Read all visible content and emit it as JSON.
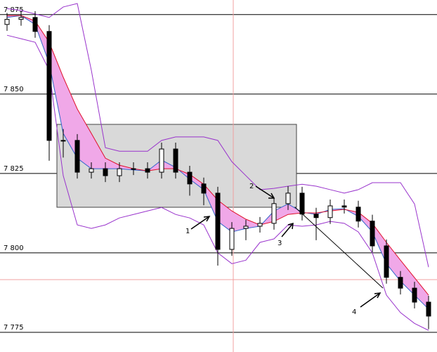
{
  "chart_data": {
    "type": "candlestick",
    "categories": [
      null,
      null,
      null,
      null,
      null,
      null,
      null,
      null,
      null,
      null,
      null,
      null,
      null,
      null,
      null,
      null,
      null,
      null,
      null,
      null,
      null,
      null,
      null,
      null,
      null,
      null,
      null,
      null,
      null,
      null,
      null
    ],
    "open": [
      7.8719,
      7.8735,
      7.8741,
      7.8697,
      7.8354,
      7.8354,
      7.8254,
      7.8265,
      7.8243,
      7.8265,
      7.8265,
      7.8254,
      7.8327,
      7.8254,
      7.8217,
      7.8188,
      7.8011,
      7.8077,
      7.8084,
      7.8093,
      7.8155,
      7.8188,
      7.8122,
      7.8111,
      7.8148,
      7.8144,
      7.81,
      7.8022,
      7.7923,
      7.7889,
      7.7845
    ],
    "high": [
      7.8755,
      7.8761,
      7.8761,
      7.8717,
      7.839,
      7.8374,
      7.8285,
      7.8285,
      7.8285,
      7.8285,
      7.8285,
      7.8347,
      7.8347,
      7.8274,
      7.8237,
      7.8208,
      7.8097,
      7.8104,
      7.8113,
      7.8175,
      7.821,
      7.8208,
      7.8142,
      7.8168,
      7.8168,
      7.8164,
      7.812,
      7.8042,
      7.7943,
      7.7909,
      7.7865
    ],
    "low": [
      7.8699,
      7.8715,
      7.8677,
      7.829,
      7.83,
      7.8234,
      7.8234,
      7.8223,
      7.8223,
      7.8245,
      7.8234,
      7.8234,
      7.8234,
      7.818,
      7.815,
      7.796,
      7.7991,
      7.804,
      7.8064,
      7.8073,
      7.8135,
      7.8102,
      7.804,
      7.8091,
      7.8124,
      7.808,
      7.8002,
      7.7903,
      7.7869,
      7.7825,
      7.776
    ],
    "close": [
      7.8735,
      7.8741,
      7.8697,
      7.8354,
      7.8354,
      7.8254,
      7.8265,
      7.8243,
      7.8265,
      7.8265,
      7.8254,
      7.8327,
      7.8254,
      7.8217,
      7.8188,
      7.8011,
      7.8077,
      7.8084,
      7.8093,
      7.8155,
      7.8188,
      7.8122,
      7.8111,
      7.8148,
      7.8144,
      7.81,
      7.8022,
      7.7923,
      7.7889,
      7.7845,
      7.7801
    ],
    "bands": [
      {
        "color": "#9933cc",
        "values": [
          7.8769,
          7.8763,
          7.8752,
          7.8741,
          7.8774,
          7.8785,
          7.8575,
          7.8331,
          7.832,
          7.832,
          7.832,
          7.8354,
          7.8365,
          7.8365,
          7.8365,
          7.8354,
          7.8287,
          7.8243,
          7.8199,
          7.8203,
          7.821,
          7.8216,
          7.821,
          7.8199,
          7.8188,
          7.8199,
          7.8221,
          7.8221,
          7.8221,
          7.8154,
          7.7955
        ]
      },
      {
        "color": "#9933cc",
        "values": [
          7.8685,
          7.8674,
          7.8663,
          7.8575,
          7.8243,
          7.8088,
          7.8077,
          7.8088,
          7.811,
          7.8121,
          7.8132,
          7.8143,
          7.8121,
          7.811,
          7.8088,
          7.8,
          7.7966,
          7.7977,
          7.8033,
          7.8044,
          7.8088,
          7.8084,
          7.8088,
          7.8099,
          7.8093,
          7.8066,
          7.8,
          7.7867,
          7.7812,
          7.7778,
          7.7756
        ]
      },
      {
        "color": "#3366cc",
        "values": [
          7.8741,
          7.8747,
          7.8719,
          7.8597,
          7.8376,
          7.8298,
          7.8265,
          7.8265,
          7.8265,
          7.8261,
          7.8258,
          7.8292,
          7.8269,
          7.8232,
          7.8199,
          7.8099,
          7.8066,
          7.8077,
          7.8084,
          7.8132,
          7.8154,
          7.8128,
          7.8121,
          7.8137,
          7.8139,
          7.8115,
          7.8066,
          7.7966,
          7.7911,
          7.7867,
          7.7823
        ]
      },
      {
        "color": "#e0102a",
        "values": [
          7.8747,
          7.8747,
          7.873,
          7.8663,
          7.8553,
          7.8453,
          7.8376,
          7.8298,
          7.8276,
          7.8265,
          7.8258,
          7.8265,
          7.8265,
          7.8247,
          7.8216,
          7.8166,
          7.8132,
          7.8106,
          7.8088,
          7.8099,
          7.8121,
          7.8126,
          7.8126,
          7.8132,
          7.8137,
          7.8128,
          7.8093,
          7.8033,
          7.7977,
          7.7922,
          7.7867
        ]
      }
    ],
    "fill_color": "#f0a8e8",
    "ylim": [
      7.7688,
      7.8796
    ],
    "yticks": [
      {
        "value": 7.775,
        "label": "7 775"
      },
      {
        "value": 7.8,
        "label": "7 800"
      },
      {
        "value": 7.825,
        "label": "7 825"
      },
      {
        "value": 7.85,
        "label": "7 850"
      },
      {
        "value": 7.875,
        "label": "7 875"
      }
    ],
    "grid": true,
    "annotations": [
      "1",
      "2",
      "3",
      "4"
    ]
  }
}
